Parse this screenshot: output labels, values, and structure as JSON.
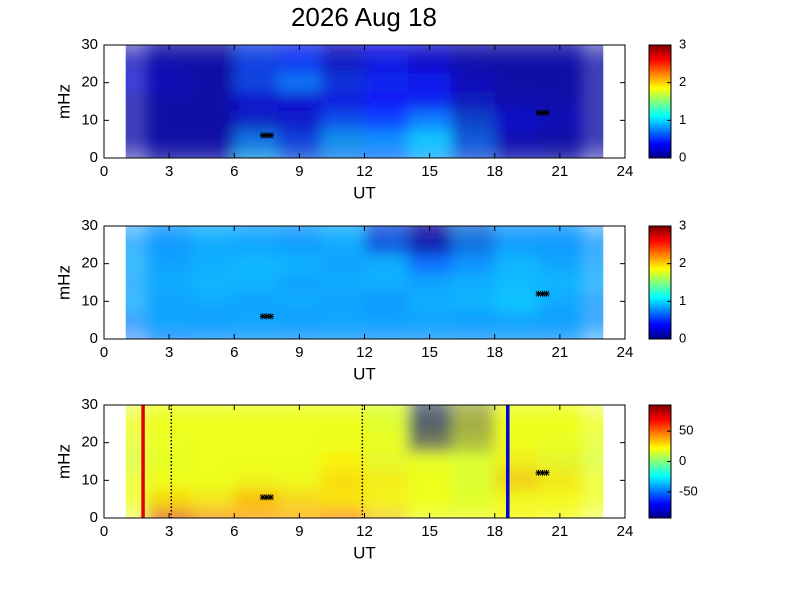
{
  "chart_data": [
    {
      "type": "heatmap",
      "title": "2026 Aug 18",
      "xlabel": "UT",
      "ylabel": "mHz",
      "xlim": [
        0,
        24
      ],
      "xticks": [
        0,
        3,
        6,
        9,
        12,
        15,
        18,
        21,
        24
      ],
      "ylim": [
        0,
        30
      ],
      "yticks": [
        0,
        10,
        20,
        30
      ],
      "clim": [
        0,
        3
      ],
      "cticks": [
        0,
        1,
        2,
        3
      ],
      "z_x": [
        2,
        4,
        6,
        8,
        10,
        12,
        14,
        16,
        18,
        20,
        22
      ],
      "z_y": [
        2.5,
        7.5,
        12.5,
        17.5,
        22.5,
        27.5
      ],
      "z": [
        [
          0.1,
          0.1,
          0.1,
          1.0,
          0.2,
          0.9,
          0.6,
          1.0,
          0.2,
          0.1,
          0.1
        ],
        [
          0.1,
          0.1,
          0.1,
          0.8,
          0.2,
          1.0,
          0.7,
          1.1,
          0.2,
          0.1,
          0.1
        ],
        [
          0.1,
          0.1,
          0.1,
          0.2,
          0.2,
          0.6,
          0.4,
          0.8,
          0.1,
          0.3,
          0.1
        ],
        [
          0.1,
          0.1,
          0.1,
          0.3,
          0.2,
          0.3,
          0.4,
          0.3,
          0.1,
          0.1,
          0.1
        ],
        [
          0.3,
          0.1,
          0.1,
          0.7,
          0.8,
          0.2,
          0.5,
          0.3,
          0.1,
          0.1,
          0.1
        ],
        [
          0.1,
          0.1,
          0.1,
          0.6,
          0.3,
          0.1,
          0.4,
          0.1,
          0.1,
          0.1,
          0.1
        ]
      ],
      "markers": {
        "x": [
          7.5,
          20.2
        ],
        "y": [
          6,
          12
        ]
      }
    },
    {
      "type": "heatmap",
      "xlabel": "UT",
      "ylabel": "mHz",
      "xlim": [
        0,
        24
      ],
      "xticks": [
        0,
        3,
        6,
        9,
        12,
        15,
        18,
        21,
        24
      ],
      "ylim": [
        0,
        30
      ],
      "yticks": [
        0,
        10,
        20,
        30
      ],
      "clim": [
        0,
        3
      ],
      "cticks": [
        0,
        1,
        2,
        3
      ],
      "z_x": [
        2,
        4,
        6,
        8,
        10,
        12,
        14,
        16,
        18,
        20,
        22
      ],
      "z_y": [
        2.5,
        7.5,
        12.5,
        17.5,
        22.5,
        27.5
      ],
      "z": [
        [
          0.7,
          0.8,
          0.8,
          0.8,
          0.8,
          0.8,
          0.8,
          0.8,
          0.8,
          0.8,
          0.8
        ],
        [
          0.8,
          0.9,
          0.8,
          0.9,
          0.8,
          0.9,
          0.8,
          0.9,
          0.8,
          0.9,
          0.8
        ],
        [
          0.9,
          0.8,
          0.9,
          0.8,
          0.9,
          0.8,
          0.8,
          0.9,
          0.9,
          1.0,
          0.8
        ],
        [
          0.8,
          0.9,
          0.9,
          0.9,
          0.8,
          0.9,
          0.9,
          0.8,
          0.9,
          0.9,
          0.9
        ],
        [
          0.9,
          0.8,
          0.9,
          0.9,
          0.9,
          0.8,
          0.9,
          0.5,
          0.9,
          0.9,
          0.8
        ],
        [
          0.8,
          0.8,
          0.9,
          0.8,
          0.8,
          0.9,
          0.2,
          0,
          0.8,
          0.8,
          0.8
        ]
      ],
      "markers": {
        "x": [
          7.5,
          20.2
        ],
        "y": [
          6,
          12
        ]
      }
    },
    {
      "type": "heatmap",
      "xlabel": "UT",
      "ylabel": "mHz",
      "xlim": [
        0,
        24
      ],
      "xticks": [
        0,
        3,
        6,
        9,
        12,
        15,
        18,
        21,
        24
      ],
      "ylim": [
        0,
        30
      ],
      "yticks": [
        0,
        10,
        20,
        30
      ],
      "clim": [
        -93,
        93
      ],
      "cticks": [
        -50,
        0,
        50
      ],
      "z_x": [
        2,
        4,
        6,
        8,
        10,
        12,
        14,
        16,
        18,
        20,
        22
      ],
      "z_y": [
        2.5,
        7.5,
        12.5,
        17.5,
        22.5,
        27.5
      ],
      "z": [
        [
          20,
          75,
          30,
          45,
          35,
          50,
          20,
          20,
          20,
          25,
          20
        ],
        [
          20,
          25,
          20,
          40,
          20,
          25,
          20,
          20,
          15,
          25,
          20
        ],
        [
          20,
          20,
          20,
          20,
          20,
          35,
          20,
          20,
          15,
          40,
          20
        ],
        [
          15,
          20,
          20,
          20,
          20,
          25,
          15,
          20,
          15,
          25,
          15
        ],
        [
          20,
          20,
          20,
          20,
          20,
          20,
          20,
          -93,
          20,
          20,
          20
        ],
        [
          20,
          20,
          20,
          20,
          20,
          20,
          15,
          -93,
          20,
          20,
          20
        ]
      ],
      "markers": {
        "x": [
          7.5,
          20.2
        ],
        "y": [
          5.5,
          12
        ]
      },
      "vlines": [
        {
          "x": 1.8,
          "color": "#e00000",
          "style": "solid"
        },
        {
          "x": 3.1,
          "color": "#000000",
          "style": "dotted"
        },
        {
          "x": 11.9,
          "color": "#000000",
          "style": "dotted"
        },
        {
          "x": 18.6,
          "color": "#0000e0",
          "style": "solid"
        }
      ]
    }
  ]
}
